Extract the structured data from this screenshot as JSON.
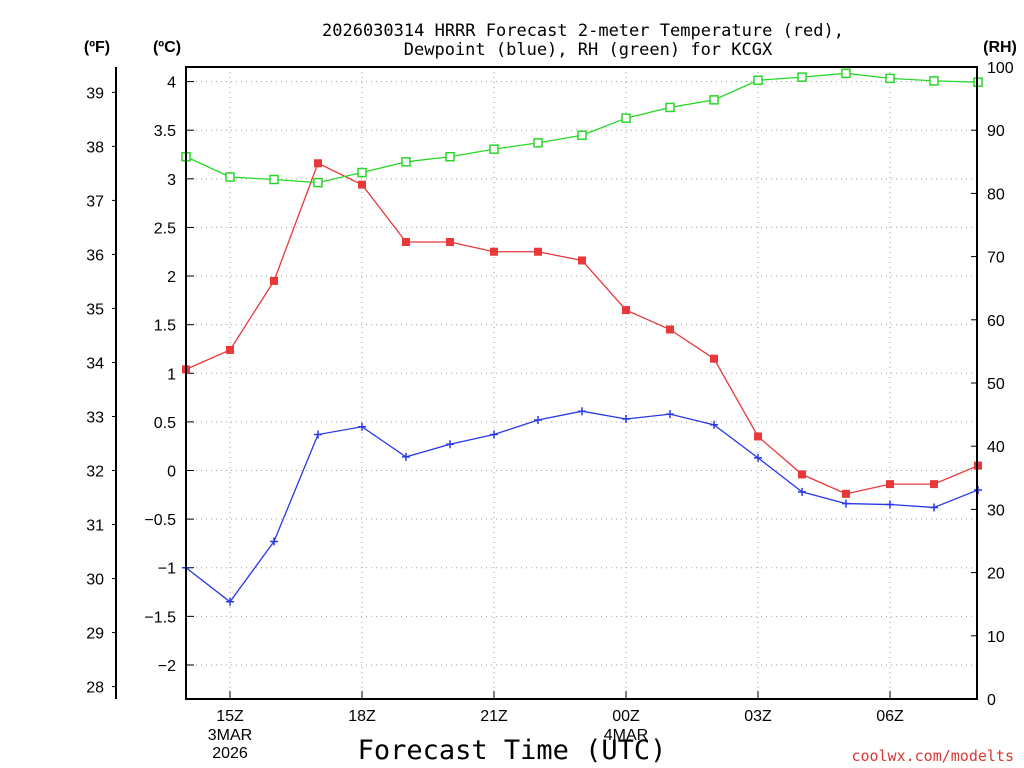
{
  "chart_data": {
    "type": "line",
    "title_line1": "2026030314 HRRR Forecast 2-meter Temperature (red),",
    "title_line2": "Dewpoint (blue), RH (green) for KCGX",
    "xlabel": "Forecast Time (UTC)",
    "watermark": "coolwx.com/modelts",
    "left_axis_label_f": "(ºF)",
    "left_axis_label_c": "(ºC)",
    "right_axis_label": "(RH)",
    "x_hours": [
      0,
      1,
      2,
      3,
      4,
      5,
      6,
      7,
      8,
      9,
      10,
      11,
      12,
      13,
      14,
      15,
      16,
      17,
      18
    ],
    "ylim_c": [
      -2.35,
      4.15
    ],
    "ylim_rh": [
      0,
      100
    ],
    "ylim_f": [
      27.77,
      39.47
    ],
    "c_ticks": [
      -2,
      -1.5,
      -1,
      -0.5,
      0,
      0.5,
      1,
      1.5,
      2,
      2.5,
      3,
      3.5,
      4
    ],
    "c_tick_labels": [
      "−2",
      "−1.5",
      "−1",
      "−0.5",
      "0",
      "0.5",
      "1",
      "1.5",
      "2",
      "2.5",
      "3",
      "3.5",
      "4"
    ],
    "f_ticks": [
      28,
      29,
      30,
      31,
      32,
      33,
      34,
      35,
      36,
      37,
      38,
      39
    ],
    "f_tick_labels": [
      "28",
      "29",
      "30",
      "31",
      "32",
      "33",
      "34",
      "35",
      "36",
      "37",
      "38",
      "39"
    ],
    "rh_ticks": [
      0,
      10,
      20,
      30,
      40,
      50,
      60,
      70,
      80,
      90,
      100
    ],
    "rh_tick_labels": [
      "0",
      "10",
      "20",
      "30",
      "40",
      "50",
      "60",
      "70",
      "80",
      "90",
      "100"
    ],
    "x_tick_hours": [
      1,
      4,
      7,
      10,
      13,
      16
    ],
    "x_tick_labels": [
      "15Z",
      "18Z",
      "21Z",
      "00Z",
      "03Z",
      "06Z"
    ],
    "date_labels": [
      {
        "hour": 1,
        "lines": [
          "3MAR",
          "2026"
        ]
      },
      {
        "hour": 10,
        "lines": [
          "4MAR"
        ]
      }
    ],
    "series": [
      {
        "name": "Temperature",
        "color": "#e8383a",
        "marker": "filled-square",
        "values": [
          1.04,
          1.24,
          1.95,
          3.16,
          2.94,
          2.35,
          2.35,
          2.25,
          2.25,
          2.16,
          1.65,
          1.45,
          1.15,
          0.35,
          -0.04,
          -0.24,
          -0.14,
          -0.14,
          0.05
        ]
      },
      {
        "name": "Dewpoint",
        "color": "#2838e8",
        "marker": "plus",
        "values": [
          -1.0,
          -1.35,
          -0.73,
          0.37,
          0.45,
          0.14,
          0.27,
          0.37,
          0.52,
          0.61,
          0.53,
          0.58,
          0.47,
          0.13,
          -0.22,
          -0.34,
          -0.35,
          -0.38,
          -0.2
        ]
      },
      {
        "name": "RH",
        "color": "#28d828",
        "marker": "open-square",
        "axis": "rh",
        "values": [
          85.8,
          82.6,
          82.2,
          81.7,
          83.3,
          85.0,
          85.8,
          87.0,
          88.0,
          89.2,
          91.9,
          93.6,
          94.8,
          97.9,
          98.4,
          99.0,
          98.2,
          97.8,
          97.6
        ]
      }
    ]
  }
}
